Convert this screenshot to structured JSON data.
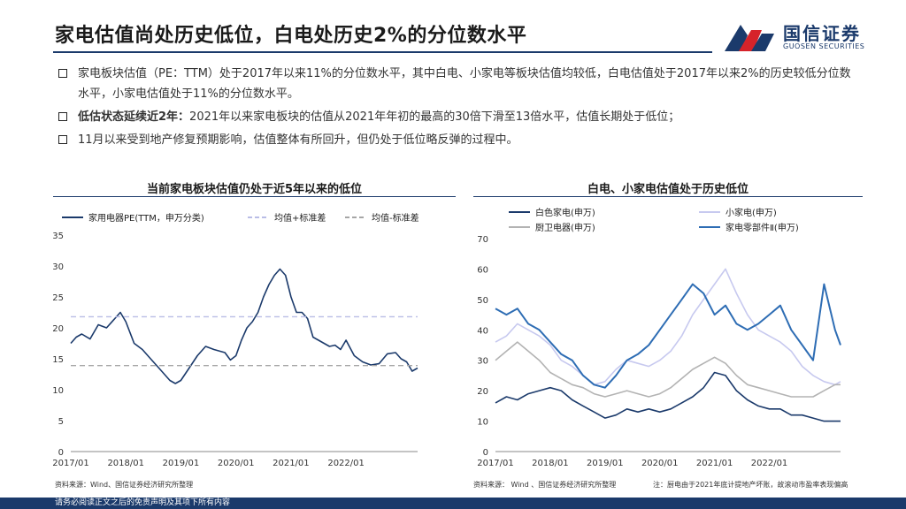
{
  "title": "家电估值尚处历史低位，白电处历史2%的分位数水平",
  "logo": {
    "cn": "国信证券",
    "en": "GUOSEN SECURITIES"
  },
  "bullets": [
    {
      "lead": "",
      "text": "家电板块估值（PE：TTM）处于2017年以来11%的分位数水平，其中白电、小家电等板块估值均较低，白电估值处于2017年以来2%的历史较低分位数水平，小家电估值处于11%的分位数水平。"
    },
    {
      "lead": "低估状态延续近2年：",
      "text": "2021年以来家电板块的估值从2021年年初的最高的30倍下滑至13倍水平，估值长期处于低位；"
    },
    {
      "lead": "",
      "text": "11月以来受到地产修复预期影响，估值整体有所回升，但仍处于低位略反弹的过程中。"
    }
  ],
  "source_left": "资料来源：Wind、国信证券经济研究所整理",
  "source_right": "资料来源： Wind 、国信证券经济研究所整理",
  "note_right": "注：厨电由于2021年底计提地产坏账，故滚动市盈率表现偏高",
  "footer": "请务必阅读正文之后的免责声明及其项下所有内容",
  "chart_data": [
    {
      "type": "line",
      "title": "当前家电板块估值仍处于近5年以来的低位",
      "x_ticks": [
        "2017/01",
        "2018/01",
        "2019/01",
        "2020/01",
        "2021/01",
        "2022/01"
      ],
      "ylim": [
        0,
        35
      ],
      "y_ticks": [
        0,
        5,
        10,
        15,
        20,
        25,
        30,
        35
      ],
      "series": [
        {
          "name": "家用电器PE(TTM，申万分类)",
          "color": "#1b3a6b",
          "style": "solid",
          "x": [
            0,
            0.1,
            0.2,
            0.35,
            0.5,
            0.65,
            0.8,
            0.9,
            1.0,
            1.15,
            1.3,
            1.45,
            1.6,
            1.8,
            1.9,
            2.0,
            2.15,
            2.3,
            2.45,
            2.6,
            2.8,
            2.9,
            3.0,
            3.1,
            3.2,
            3.3,
            3.4,
            3.5,
            3.6,
            3.7,
            3.8,
            3.9,
            4.0,
            4.1,
            4.2,
            4.3,
            4.4,
            4.5,
            4.6,
            4.7,
            4.8,
            4.9,
            5.0,
            5.15,
            5.3,
            5.45,
            5.6,
            5.75,
            5.9,
            6.0,
            6.1,
            6.2,
            6.3
          ],
          "y": [
            17.5,
            18.5,
            19,
            18.2,
            20.5,
            20,
            21.5,
            22.5,
            21,
            17.5,
            16.5,
            15,
            13.5,
            11.5,
            11,
            11.5,
            13.5,
            15.5,
            17,
            16.5,
            16,
            14.8,
            15.5,
            18,
            20,
            21,
            22.5,
            25,
            27,
            28.5,
            29.5,
            28.5,
            25,
            22.5,
            22.5,
            21.5,
            18.5,
            18,
            17.5,
            17,
            17.2,
            16.5,
            18,
            15.5,
            14.5,
            14,
            14.2,
            15.8,
            16,
            15,
            14.5,
            13,
            13.5
          ]
        },
        {
          "name": "均值+标准差",
          "color": "#b9bde6",
          "style": "dashed",
          "value": 21.8
        },
        {
          "name": "均值-标准差",
          "color": "#a6a6a6",
          "style": "dashed",
          "value": 13.9
        }
      ]
    },
    {
      "type": "line",
      "title": "白电、小家电估值处于历史低位",
      "x_ticks": [
        "2017/01",
        "2018/01",
        "2019/01",
        "2020/01",
        "2021/01",
        "2022/01"
      ],
      "ylim": [
        0,
        70
      ],
      "y_ticks": [
        0,
        10,
        20,
        30,
        40,
        50,
        60,
        70
      ],
      "series": [
        {
          "name": "白色家电(申万)",
          "color": "#1b3a6b",
          "style": "solid",
          "x": [
            0,
            0.2,
            0.4,
            0.6,
            0.8,
            1.0,
            1.2,
            1.4,
            1.6,
            1.8,
            2.0,
            2.2,
            2.4,
            2.6,
            2.8,
            3.0,
            3.2,
            3.4,
            3.6,
            3.8,
            4.0,
            4.2,
            4.4,
            4.6,
            4.8,
            5.0,
            5.2,
            5.4,
            5.6,
            5.8,
            6.0,
            6.2,
            6.3
          ],
          "y": [
            16,
            18,
            17,
            19,
            20,
            21,
            20,
            17,
            15,
            13,
            11,
            12,
            14,
            13,
            14,
            13,
            14,
            16,
            18,
            21,
            26,
            25,
            20,
            17,
            15,
            14,
            14,
            12,
            12,
            11,
            10,
            10,
            10
          ]
        },
        {
          "name": "小家电(申万)",
          "color": "#c7c9ef",
          "style": "solid",
          "x": [
            0,
            0.2,
            0.4,
            0.6,
            0.8,
            1.0,
            1.2,
            1.4,
            1.6,
            1.8,
            2.0,
            2.2,
            2.4,
            2.6,
            2.8,
            3.0,
            3.2,
            3.4,
            3.6,
            3.8,
            4.0,
            4.2,
            4.4,
            4.6,
            4.8,
            5.0,
            5.2,
            5.4,
            5.6,
            5.8,
            6.0,
            6.2,
            6.3
          ],
          "y": [
            36,
            38,
            42,
            40,
            38,
            35,
            30,
            28,
            25,
            22,
            23,
            27,
            30,
            29,
            28,
            30,
            33,
            38,
            45,
            50,
            55,
            60,
            52,
            45,
            40,
            38,
            36,
            33,
            28,
            25,
            23,
            22,
            23
          ]
        },
        {
          "name": "厨卫电器(申万)",
          "color": "#b3b3b3",
          "style": "solid",
          "x": [
            0,
            0.2,
            0.4,
            0.6,
            0.8,
            1.0,
            1.2,
            1.4,
            1.6,
            1.8,
            2.0,
            2.2,
            2.4,
            2.6,
            2.8,
            3.0,
            3.2,
            3.4,
            3.6,
            3.8,
            4.0,
            4.2,
            4.4,
            4.6,
            4.8,
            5.0,
            5.2,
            5.4,
            5.6,
            5.8,
            6.0,
            6.2,
            6.3
          ],
          "y": [
            30,
            33,
            36,
            33,
            30,
            26,
            24,
            22,
            21,
            19,
            18,
            19,
            20,
            19,
            18,
            19,
            21,
            24,
            27,
            29,
            31,
            29,
            25,
            22,
            21,
            20,
            19,
            18,
            18,
            18,
            20,
            22,
            22
          ]
        },
        {
          "name": "家电零部件Ⅱ(申万)",
          "color": "#2e6db4",
          "style": "solid",
          "x": [
            0,
            0.2,
            0.4,
            0.6,
            0.8,
            1.0,
            1.2,
            1.4,
            1.6,
            1.8,
            2.0,
            2.2,
            2.4,
            2.6,
            2.8,
            3.0,
            3.2,
            3.4,
            3.6,
            3.8,
            4.0,
            4.2,
            4.4,
            4.6,
            4.8,
            5.0,
            5.2,
            5.4,
            5.6,
            5.8,
            6.0,
            6.2,
            6.3
          ],
          "y": [
            47,
            45,
            47,
            42,
            40,
            36,
            32,
            30,
            25,
            22,
            21,
            25,
            30,
            32,
            35,
            40,
            45,
            50,
            55,
            52,
            45,
            48,
            42,
            40,
            42,
            45,
            48,
            40,
            35,
            30,
            55,
            40,
            35
          ]
        }
      ]
    }
  ]
}
